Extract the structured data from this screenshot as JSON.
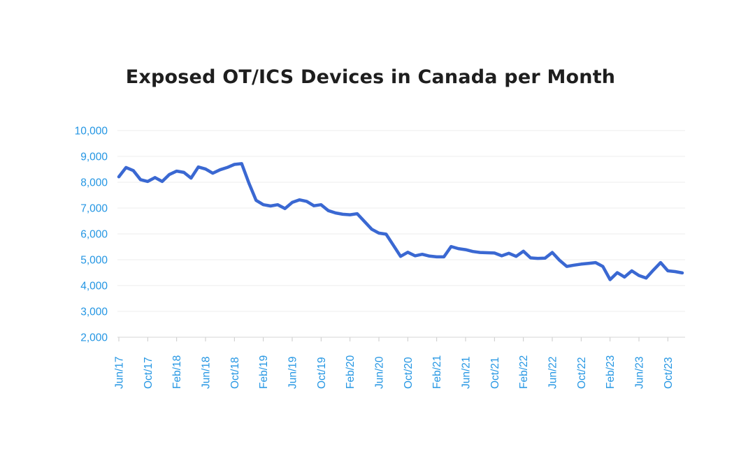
{
  "page": {
    "background_color": "#ffffff"
  },
  "header": {
    "title": "Exposed OT/ICS Devices in Canada per Month"
  },
  "chart_data": {
    "type": "line",
    "title": "Exposed OT/ICS Devices in Canada per Month",
    "xlabel": "",
    "ylabel": "",
    "ylim": [
      2000,
      10000
    ],
    "grid": "horizontal",
    "legend": "none",
    "x": [
      "Jun/17",
      "Jul/17",
      "Aug/17",
      "Sep/17",
      "Oct/17",
      "Nov/17",
      "Dec/17",
      "Jan/18",
      "Feb/18",
      "Mar/18",
      "Apr/18",
      "May/18",
      "Jun/18",
      "Jul/18",
      "Aug/18",
      "Sep/18",
      "Oct/18",
      "Nov/18",
      "Dec/18",
      "Jan/19",
      "Feb/19",
      "Mar/19",
      "Apr/19",
      "May/19",
      "Jun/19",
      "Jul/19",
      "Aug/19",
      "Sep/19",
      "Oct/19",
      "Nov/19",
      "Dec/19",
      "Jan/20",
      "Feb/20",
      "Mar/20",
      "Apr/20",
      "May/20",
      "Jun/20",
      "Jul/20",
      "Aug/20",
      "Sep/20",
      "Oct/20",
      "Nov/20",
      "Dec/20",
      "Jan/21",
      "Feb/21",
      "Mar/21",
      "Apr/21",
      "May/21",
      "Jun/21",
      "Jul/21",
      "Aug/21",
      "Sep/21",
      "Oct/21",
      "Nov/21",
      "Dec/21",
      "Jan/22",
      "Feb/22",
      "Mar/22",
      "Apr/22",
      "May/22",
      "Jun/22",
      "Jul/22",
      "Aug/22",
      "Sep/22",
      "Oct/22",
      "Nov/22",
      "Dec/22",
      "Jan/23",
      "Feb/23",
      "Mar/23",
      "Apr/23",
      "May/23",
      "Jun/23",
      "Jul/23",
      "Aug/23",
      "Sep/23",
      "Oct/23",
      "Nov/23",
      "Dec/23"
    ],
    "series": [
      {
        "name": "Exposed OT/ICS devices",
        "values": [
          8210,
          8570,
          8450,
          8100,
          8030,
          8180,
          8030,
          8300,
          8430,
          8380,
          8160,
          8590,
          8510,
          8350,
          8480,
          8570,
          8690,
          8720,
          7970,
          7300,
          7130,
          7080,
          7130,
          6980,
          7220,
          7320,
          7260,
          7090,
          7130,
          6900,
          6810,
          6760,
          6740,
          6780,
          6480,
          6180,
          6030,
          5990,
          5560,
          5130,
          5290,
          5150,
          5210,
          5140,
          5110,
          5110,
          5510,
          5430,
          5390,
          5320,
          5280,
          5270,
          5260,
          5150,
          5250,
          5130,
          5330,
          5070,
          5050,
          5060,
          5280,
          4980,
          4740,
          4790,
          4830,
          4860,
          4890,
          4740,
          4230,
          4500,
          4330,
          4570,
          4390,
          4290,
          4600,
          4890,
          4570,
          4540,
          4490
        ]
      }
    ],
    "x_tick_every": 4,
    "x_tick_labels": [
      "Jun/17",
      "Oct/17",
      "Feb/18",
      "Jun/18",
      "Oct/18",
      "Feb/19",
      "Jun/19",
      "Oct/19",
      "Feb/20",
      "Jun/20",
      "Oct/20",
      "Feb/21",
      "Jun/21",
      "Oct/21",
      "Feb/22",
      "Jun/22",
      "Oct/22",
      "Feb/23",
      "Jun/23",
      "Oct/23"
    ],
    "y_ticks": [
      2000,
      3000,
      4000,
      5000,
      6000,
      7000,
      8000,
      9000,
      10000
    ],
    "y_tick_labels": [
      "2,000",
      "3,000",
      "4,000",
      "5,000",
      "6,000",
      "7,000",
      "8,000",
      "9,000",
      "10,000"
    ],
    "colors": {
      "line": "#3a68d2",
      "axis_labels": "#2496e3",
      "title": "#1e1e1e",
      "gridline": "#ececec",
      "axis_line": "#d4d4d4",
      "tick_mark": "#c9c9c9"
    }
  }
}
